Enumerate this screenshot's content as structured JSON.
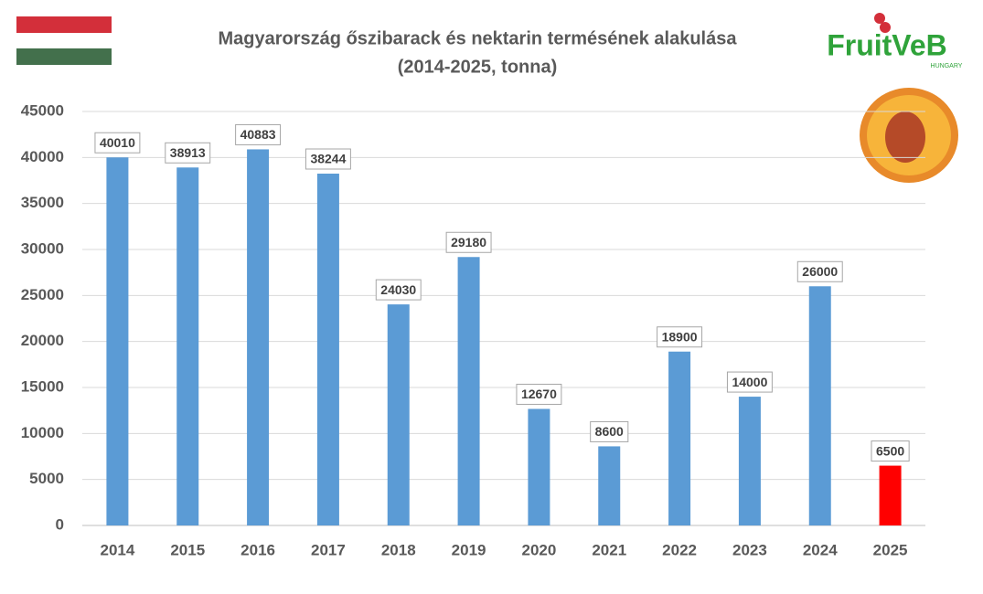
{
  "chart_data": {
    "type": "bar",
    "title": [
      "Magyarország őszibarack és nektarin termésének alakulása",
      "(2014-2025, tonna)"
    ],
    "logo": {
      "text": "FruitVeB",
      "subtext": "HUNGARY"
    },
    "categories": [
      "2014",
      "2015",
      "2016",
      "2017",
      "2018",
      "2019",
      "2020",
      "2021",
      "2022",
      "2023",
      "2024",
      "2025"
    ],
    "values": [
      40010,
      38913,
      40883,
      38244,
      24030,
      29180,
      12670,
      8600,
      18900,
      14000,
      26000,
      6500
    ],
    "colors": [
      "#5b9bd5",
      "#5b9bd5",
      "#5b9bd5",
      "#5b9bd5",
      "#5b9bd5",
      "#5b9bd5",
      "#5b9bd5",
      "#5b9bd5",
      "#5b9bd5",
      "#5b9bd5",
      "#5b9bd5",
      "#ff0000"
    ],
    "ylim": [
      0,
      45000
    ],
    "yticks": [
      0,
      5000,
      10000,
      15000,
      20000,
      25000,
      30000,
      35000,
      40000,
      45000
    ],
    "grid": true,
    "data_labels": true
  }
}
